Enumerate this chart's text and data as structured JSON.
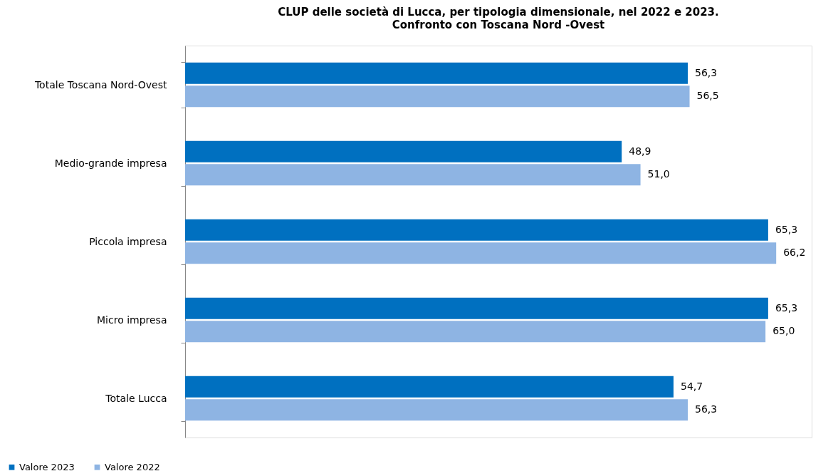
{
  "chart_data": {
    "type": "bar",
    "orientation": "horizontal",
    "title": "CLUP delle società di Lucca, per tipologia dimensionale, nel 2022 e 2023.",
    "subtitle": "Confronto con Toscana Nord -Ovest",
    "categories": [
      "Totale Toscana Nord-Ovest",
      "Medio-grande impresa",
      "Piccola impresa",
      "Micro impresa",
      "Totale Lucca"
    ],
    "series": [
      {
        "name": "Valore 2023",
        "color": "#0070c0",
        "values": [
          56.3,
          48.9,
          65.3,
          65.3,
          54.7
        ],
        "value_labels": [
          "56,3",
          "48,9",
          "65,3",
          "65,3",
          "54,7"
        ]
      },
      {
        "name": "Valore 2022",
        "color": "#8eb4e3",
        "values": [
          56.5,
          51.0,
          66.2,
          65.0,
          56.3
        ],
        "value_labels": [
          "56,5",
          "51,0",
          "66,2",
          "65,0",
          "56,3"
        ]
      }
    ],
    "legend": "bottom",
    "grid": false
  }
}
